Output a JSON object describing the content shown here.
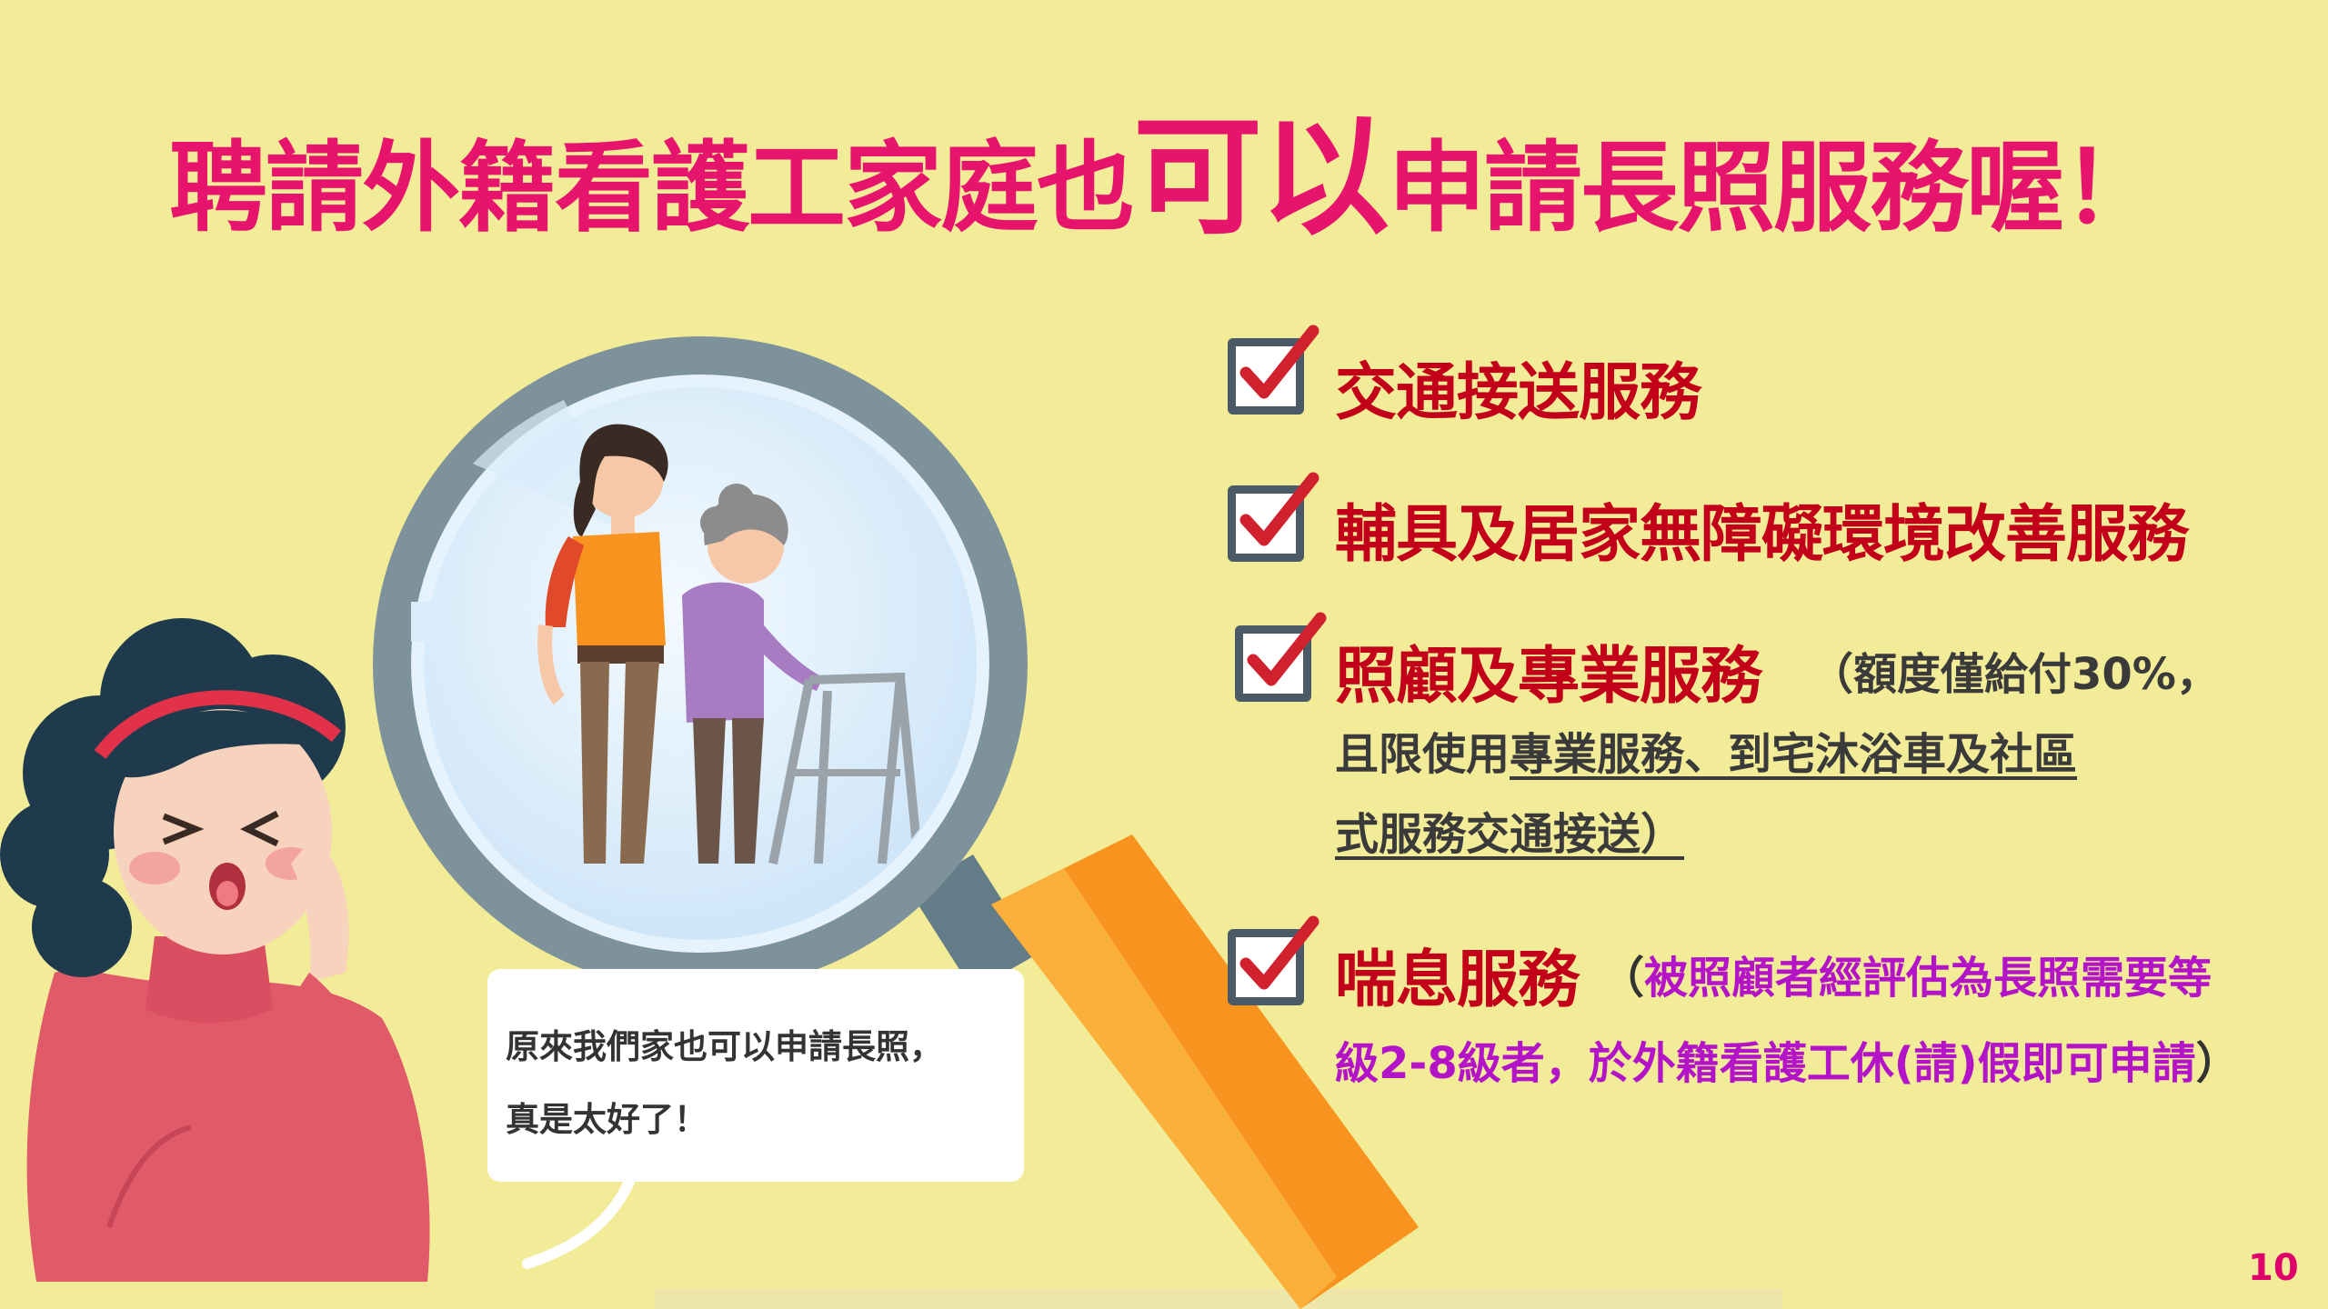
{
  "title": {
    "part1": "聘請外籍看護工家庭也",
    "emphasis": "可以",
    "part2": "申請長照服務喔！"
  },
  "items": [
    {
      "title": "交通接送服務"
    },
    {
      "title": "輔具及居家無障礙環境改善服務"
    },
    {
      "title": "照顧及專業服務",
      "note_line1": "（額度僅給付30%，",
      "note_line2_plain": "且限使用",
      "note_line2_underlined": "專業服務、到宅沐浴車及社區",
      "note_line3_underlined": "式服務交通接送）"
    },
    {
      "title": "喘息服務",
      "note_open": "（",
      "note_line1": "被照顧者經評估為長照需要等",
      "note_line2": "級2-8級者，於外籍看護工休(請)假即可申請",
      "note_close": "）"
    }
  ],
  "bubble": {
    "line1": "原來我們家也可以申請長照，",
    "line2": "真是太好了！"
  },
  "page_number": "10",
  "icons": {
    "checkbox": "checkbox-checked-icon",
    "magnifier": "magnifying-glass-illustration",
    "woman": "surprised-woman-illustration"
  },
  "colors": {
    "background": "#F2EC98",
    "title": "#E7146E",
    "item_title": "#C2001A",
    "note_purple": "#B414C8",
    "page_number": "#E0006A"
  }
}
